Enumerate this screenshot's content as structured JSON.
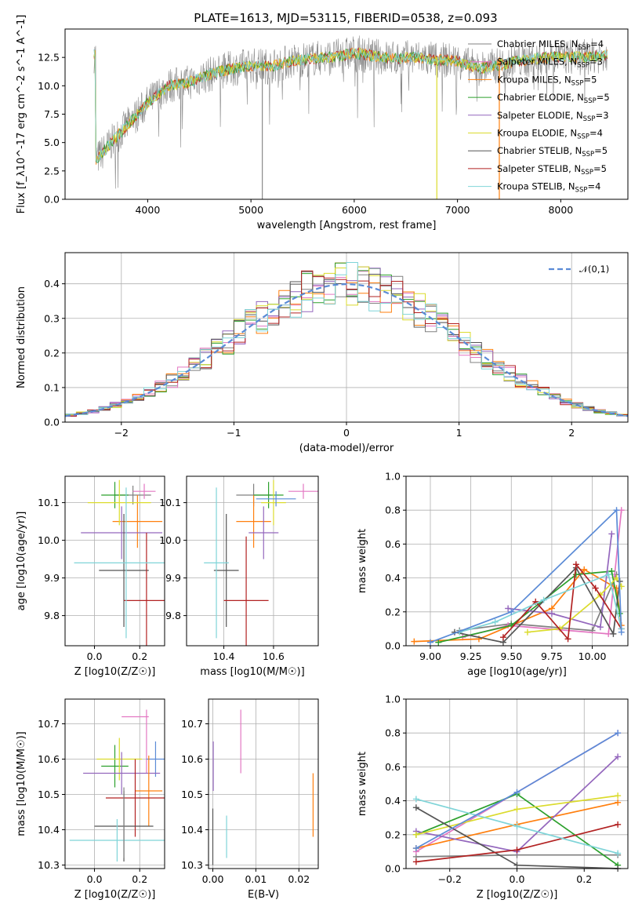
{
  "title": "PLATE=1613, MJD=53115, FIBERID=0538, z=0.093",
  "colors": {
    "Chabrier MILES": "#808080",
    "Salpeter MILES": "#e377c2",
    "Kroupa MILES": "#ff7f0e",
    "Chabrier ELODIE": "#2ca02c",
    "Salpeter ELODIE": "#9467bd",
    "Kroupa ELODIE": "#dbdb2d",
    "Chabrier STELIB": "#555555",
    "Salpeter STELIB": "#b22222",
    "Kroupa STELIB": "#7fd4d8",
    "normal": "#5b8bd6",
    "grid": "#b0b0b0"
  },
  "chart_data": [
    {
      "type": "line",
      "xlabel": "wavelength [Angstrom, rest frame]",
      "ylabel": "Flux [f_λ10^-17 erg cm^-2 s^-1 A^-1]",
      "xlim": [
        3200,
        8650
      ],
      "ylim": [
        0,
        15
      ],
      "xticks": [
        4000,
        5000,
        6000,
        7000,
        8000
      ],
      "yticks": [
        0.0,
        2.5,
        5.0,
        7.5,
        10.0,
        12.5
      ],
      "grid": false,
      "legend_position": "right",
      "legend": [
        "Chabrier MILES, N_SSP=4",
        "Salpeter MILES, N_SSP=3",
        "Kroupa MILES, N_SSP=5",
        "Chabrier ELODIE, N_SSP=5",
        "Salpeter ELODIE, N_SSP=3",
        "Kroupa ELODIE, N_SSP=4",
        "Chabrier STELIB, N_SSP=5",
        "Salpeter STELIB, N_SSP=5",
        "Kroupa STELIB, N_SSP=4"
      ],
      "spectrum_envelope": {
        "x": [
          3500,
          3700,
          3900,
          4000,
          4200,
          4400,
          4600,
          4800,
          5000,
          5200,
          5400,
          5600,
          5800,
          6000,
          6200,
          6400,
          6600,
          6800,
          7000,
          7200,
          7400,
          7600,
          7800,
          8000,
          8200,
          8400
        ],
        "y": [
          3.5,
          5.5,
          7.5,
          8.5,
          10.0,
          10.3,
          11.0,
          11.5,
          11.8,
          11.7,
          12.2,
          12.4,
          12.5,
          12.9,
          12.6,
          12.4,
          12.5,
          12.3,
          12.2,
          11.5,
          11.8,
          12.2,
          12.4,
          12.6,
          12.5,
          12.7
        ]
      }
    },
    {
      "type": "histogram",
      "xlabel": "(data-model)/error",
      "ylabel": "Normed distribution",
      "xlim": [
        -2.5,
        2.5
      ],
      "ylim": [
        0,
        0.49
      ],
      "xticks": [
        -2,
        -1,
        0,
        1,
        2
      ],
      "yticks": [
        0.0,
        0.1,
        0.2,
        0.3,
        0.4
      ],
      "grid": true,
      "legend_position": "top-right",
      "legend": [
        "𝒩(0,1)"
      ],
      "bin_width": 0.1,
      "bin_start": -2.5,
      "reference_curve": "standard normal density"
    },
    {
      "type": "errorbar",
      "xlabel": "Z [log10(Z/Z☉)]",
      "ylabel": "age  [log10(age/yr)]",
      "xlim": [
        -0.13,
        0.31
      ],
      "ylim": [
        9.72,
        10.17
      ],
      "xticks": [
        0.0,
        0.2
      ],
      "yticks": [
        9.8,
        9.9,
        10.0,
        10.1
      ],
      "grid": true,
      "series": [
        {
          "name": "Chabrier MILES",
          "x": 0.17,
          "xerr": 0.08,
          "y": 10.12,
          "yerr": 0.025
        },
        {
          "name": "Salpeter MILES",
          "x": 0.22,
          "xerr": 0.05,
          "y": 10.13,
          "yerr": 0.02
        },
        {
          "name": "Kroupa MILES",
          "x": 0.19,
          "xerr": 0.11,
          "y": 10.05,
          "yerr": 0.07
        },
        {
          "name": "Chabrier ELODIE",
          "x": 0.09,
          "xerr": 0.06,
          "y": 10.12,
          "yerr": 0.035
        },
        {
          "name": "Salpeter ELODIE",
          "x": 0.12,
          "xerr": 0.18,
          "y": 10.02,
          "yerr": 0.07
        },
        {
          "name": "Kroupa ELODIE",
          "x": 0.11,
          "xerr": 0.14,
          "y": 10.1,
          "yerr": 0.06
        },
        {
          "name": "Chabrier STELIB",
          "x": 0.13,
          "xerr": 0.11,
          "y": 9.92,
          "yerr": 0.15
        },
        {
          "name": "Salpeter STELIB",
          "x": 0.23,
          "xerr": 0.1,
          "y": 9.84,
          "yerr": 0.18
        },
        {
          "name": "Kroupa STELIB",
          "x": 0.14,
          "xerr": 0.23,
          "y": 9.94,
          "yerr": 0.2
        }
      ]
    },
    {
      "type": "errorbar",
      "xlabel": "mass [log10(M/M☉)]",
      "ylabel": "",
      "xlim": [
        10.25,
        10.78
      ],
      "ylim": [
        9.72,
        10.17
      ],
      "xticks": [
        10.4,
        10.6
      ],
      "yticks": [
        9.8,
        9.9,
        10.0,
        10.1
      ],
      "grid": true,
      "series": [
        {
          "name": "Chabrier MILES",
          "x": 10.52,
          "xerr": 0.07,
          "y": 10.12,
          "yerr": 0.03
        },
        {
          "name": "Salpeter MILES",
          "x": 10.72,
          "xerr": 0.06,
          "y": 10.13,
          "yerr": 0.02
        },
        {
          "name": "Kroupa MILES",
          "x": 10.52,
          "xerr": 0.07,
          "y": 10.05,
          "yerr": 0.07
        },
        {
          "name": "Chabrier ELODIE",
          "x": 10.58,
          "xerr": 0.06,
          "y": 10.12,
          "yerr": 0.035
        },
        {
          "name": "Salpeter ELODIE",
          "x": 10.56,
          "xerr": 0.06,
          "y": 10.02,
          "yerr": 0.07
        },
        {
          "name": "Kroupa ELODIE",
          "x": 10.6,
          "xerr": 0.05,
          "y": 10.1,
          "yerr": 0.06
        },
        {
          "name": "Chabrier STELIB",
          "x": 10.41,
          "xerr": 0.05,
          "y": 9.92,
          "yerr": 0.15
        },
        {
          "name": "Salpeter STELIB",
          "x": 10.49,
          "xerr": 0.09,
          "y": 9.84,
          "yerr": 0.17
        },
        {
          "name": "Kroupa STELIB",
          "x": 10.37,
          "xerr": 0.05,
          "y": 9.94,
          "yerr": 0.2
        },
        {
          "name": "normal",
          "x": 10.61,
          "xerr": 0.08,
          "y": 10.11,
          "yerr": 0.02
        }
      ]
    },
    {
      "type": "line",
      "xlabel": "age  [log10(age/yr)]",
      "ylabel": "mass weight",
      "xlim": [
        8.85,
        10.22
      ],
      "ylim": [
        0,
        1.0
      ],
      "xticks": [
        9.0,
        9.25,
        9.5,
        9.75,
        10.0
      ],
      "yticks": [
        0.0,
        0.2,
        0.4,
        0.6,
        0.8,
        1.0
      ],
      "grid": true,
      "series": [
        {
          "name": "Chabrier MILES",
          "x": [
            9.18,
            9.5,
            10.0,
            10.15
          ],
          "y": [
            0.09,
            0.13,
            0.09,
            0.42
          ]
        },
        {
          "name": "Salpeter MILES",
          "x": [
            9.2,
            9.48,
            10.1,
            10.18
          ],
          "y": [
            0.05,
            0.12,
            0.07,
            0.8
          ]
        },
        {
          "name": "Kroupa MILES",
          "x": [
            8.9,
            9.3,
            9.75,
            9.95,
            10.15,
            10.18
          ],
          "y": [
            0.025,
            0.04,
            0.22,
            0.45,
            0.34,
            0.12
          ]
        },
        {
          "name": "Chabrier ELODIE",
          "x": [
            9.05,
            9.5,
            9.9,
            10.12,
            10.17
          ],
          "y": [
            0.02,
            0.12,
            0.42,
            0.44,
            0.19
          ]
        },
        {
          "name": "Salpeter ELODIE",
          "x": [
            9.48,
            9.75,
            10.05,
            10.12
          ],
          "y": [
            0.22,
            0.19,
            0.11,
            0.66
          ]
        },
        {
          "name": "Kroupa ELODIE",
          "x": [
            9.6,
            9.8,
            10.05,
            10.15,
            10.18
          ],
          "y": [
            0.08,
            0.1,
            0.3,
            0.4,
            0.35
          ]
        },
        {
          "name": "Chabrier STELIB",
          "x": [
            9.15,
            9.45,
            9.9,
            10.13,
            10.17
          ],
          "y": [
            0.08,
            0.02,
            0.46,
            0.07,
            0.38
          ]
        },
        {
          "name": "Salpeter STELIB",
          "x": [
            9.45,
            9.65,
            9.85,
            9.9,
            10.02,
            10.18
          ],
          "y": [
            0.05,
            0.26,
            0.04,
            0.48,
            0.34,
            0.1
          ]
        },
        {
          "name": "Kroupa STELIB",
          "x": [
            9.18,
            9.4,
            9.7,
            10.1,
            10.18
          ],
          "y": [
            0.08,
            0.14,
            0.27,
            0.42,
            0.1
          ]
        },
        {
          "name": "normal",
          "x": [
            9.0,
            9.5,
            10.15,
            10.18
          ],
          "y": [
            0.02,
            0.2,
            0.8,
            0.08
          ]
        }
      ]
    },
    {
      "type": "errorbar",
      "xlabel": "Z [log10(Z/Z☉)]",
      "ylabel": "mass [log10(M/M☉)]",
      "xlim": [
        -0.13,
        0.31
      ],
      "ylim": [
        10.29,
        10.77
      ],
      "xticks": [
        0.0,
        0.2
      ],
      "yticks": [
        10.3,
        10.4,
        10.5,
        10.6,
        10.7
      ],
      "grid": true,
      "series": [
        {
          "name": "Salpeter MILES",
          "x": 0.18,
          "xerr": 0.06,
          "y": 10.72,
          "yerr": 0.0
        },
        {
          "name": "Salpeter MILES v",
          "x": 0.23,
          "xerr": 0.0,
          "y": 10.65,
          "yerr": 0.09
        },
        {
          "name": "Chabrier ELODIE",
          "x": 0.09,
          "xerr": 0.06,
          "y": 10.58,
          "yerr": 0.06
        },
        {
          "name": "Kroupa ELODIE",
          "x": 0.11,
          "xerr": 0.1,
          "y": 10.6,
          "yerr": 0.06
        },
        {
          "name": "normal",
          "x": 0.27,
          "xerr": 0.04,
          "y": 10.6,
          "yerr": 0.05
        },
        {
          "name": "Salpeter ELODIE",
          "x": 0.12,
          "xerr": 0.17,
          "y": 10.56,
          "yerr": 0.06
        },
        {
          "name": "Kroupa MILES",
          "x": 0.24,
          "xerr": 0.06,
          "y": 10.51,
          "yerr": 0.1
        },
        {
          "name": "Salpeter STELIB",
          "x": 0.18,
          "xerr": 0.13,
          "y": 10.49,
          "yerr": 0.11
        },
        {
          "name": "Chabrier STELIB",
          "x": 0.13,
          "xerr": 0.13,
          "y": 10.41,
          "yerr": 0.1
        },
        {
          "name": "Kroupa STELIB",
          "x": 0.1,
          "xerr": 0.21,
          "y": 10.37,
          "yerr": 0.06
        },
        {
          "name": "Chabrier MILES",
          "x": 0.13,
          "xerr": 0.0,
          "y": 10.42,
          "yerr": 0.1
        }
      ]
    },
    {
      "type": "errorbar",
      "xlabel": "E(B-V)",
      "ylabel": "",
      "xlim": [
        -0.001,
        0.0245
      ],
      "ylim": [
        10.29,
        10.77
      ],
      "xticks": [
        0.0,
        0.01,
        0.02
      ],
      "yticks": [
        10.3,
        10.4,
        10.5,
        10.6,
        10.7
      ],
      "grid": true,
      "series": [
        {
          "name": "Salpeter MILES",
          "x": 0.0065,
          "xerr": 0.0,
          "y": 10.65,
          "yerr": 0.09
        },
        {
          "name": "Salpeter ELODIE",
          "x": 0.0001,
          "xerr": 0.0,
          "y": 10.58,
          "yerr": 0.07
        },
        {
          "name": "Kroupa STELIB",
          "x": 0.0032,
          "xerr": 0.0,
          "y": 10.38,
          "yerr": 0.06
        },
        {
          "name": "Kroupa MILES",
          "x": 0.0233,
          "xerr": 0.0,
          "y": 10.47,
          "yerr": 0.09
        },
        {
          "name": "Chabrier STELIB",
          "x": 0.0,
          "xerr": 0.0,
          "y": 10.38,
          "yerr": 0.08
        }
      ]
    },
    {
      "type": "line",
      "xlabel": "Z [log10(Z/Z☉)]",
      "ylabel": "mass weight",
      "xlim": [
        -0.33,
        0.33
      ],
      "ylim": [
        0,
        1.0
      ],
      "xticks": [
        -0.2,
        0.0,
        0.2
      ],
      "yticks": [
        0.0,
        0.2,
        0.4,
        0.6,
        0.8,
        1.0
      ],
      "grid": true,
      "series": [
        {
          "name": "Chabrier MILES",
          "x": [
            -0.3,
            0.0,
            0.3
          ],
          "y": [
            0.07,
            0.08,
            0.08
          ]
        },
        {
          "name": "Salpeter MILES",
          "x": [
            -0.3,
            0.3
          ],
          "y": [
            0.1,
            0.8
          ]
        },
        {
          "name": "Kroupa MILES",
          "x": [
            -0.3,
            0.0,
            0.3
          ],
          "y": [
            0.12,
            0.26,
            0.39
          ]
        },
        {
          "name": "Chabrier ELODIE",
          "x": [
            -0.3,
            0.0,
            0.3
          ],
          "y": [
            0.2,
            0.44,
            0.02
          ]
        },
        {
          "name": "Salpeter ELODIE",
          "x": [
            -0.3,
            0.0,
            0.3
          ],
          "y": [
            0.22,
            0.1,
            0.66
          ]
        },
        {
          "name": "Kroupa ELODIE",
          "x": [
            -0.3,
            0.0,
            0.3
          ],
          "y": [
            0.2,
            0.35,
            0.43
          ]
        },
        {
          "name": "Chabrier STELIB",
          "x": [
            -0.3,
            0.0,
            0.3
          ],
          "y": [
            0.36,
            0.02,
            0.0
          ]
        },
        {
          "name": "Salpeter STELIB",
          "x": [
            -0.3,
            0.0,
            0.3
          ],
          "y": [
            0.04,
            0.11,
            0.26
          ]
        },
        {
          "name": "Kroupa STELIB",
          "x": [
            -0.3,
            0.0,
            0.3
          ],
          "y": [
            0.41,
            0.25,
            0.09
          ]
        },
        {
          "name": "normal",
          "x": [
            -0.3,
            0.0,
            0.3
          ],
          "y": [
            0.12,
            0.45,
            0.8
          ]
        }
      ]
    }
  ]
}
